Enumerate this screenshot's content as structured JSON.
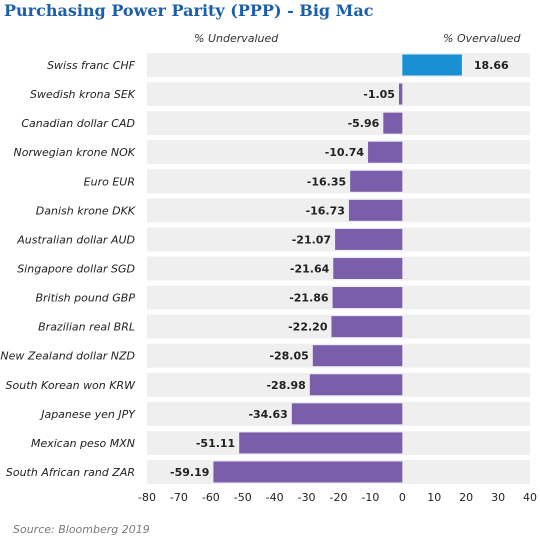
{
  "chart_data": {
    "type": "bar",
    "orientation": "horizontal",
    "title": "Purchasing Power Parity (PPP) - Big Mac",
    "left_header": "% Undervalued",
    "right_header": "% Overvalued",
    "categories": [
      "Swiss franc CHF",
      "Swedish krona SEK",
      "Canadian dollar CAD",
      "Norwegian krone NOK",
      "Euro EUR",
      "Danish krone DKK",
      "Australian dollar AUD",
      "Singapore dollar SGD",
      "British pound GBP",
      "Brazilian real BRL",
      "New Zealand dollar NZD",
      "South Korean won KRW",
      "Japanese yen JPY",
      "Mexican peso MXN",
      "South African rand ZAR"
    ],
    "values": [
      18.66,
      -1.05,
      -5.96,
      -10.74,
      -16.35,
      -16.73,
      -21.07,
      -21.64,
      -21.86,
      -22.2,
      -28.05,
      -28.98,
      -34.63,
      -51.11,
      -59.19
    ],
    "value_labels": [
      "18.66",
      "-1.05",
      "-5.96",
      "-10.74",
      "-16.35",
      "-16.73",
      "-21.07",
      "-21.64",
      "-21.86",
      "-22.20",
      "-28.05",
      "-28.98",
      "-34.63",
      "-51.11",
      "-59.19"
    ],
    "xlim": [
      -80,
      40
    ],
    "xticks": [
      -80,
      -70,
      -60,
      -50,
      -40,
      -30,
      -20,
      -10,
      0,
      10,
      20,
      30,
      40
    ],
    "colors": {
      "positive": "#1a90d4",
      "negative": "#7a5eab",
      "row_band": "#efefef"
    },
    "source": "Source: Bloomberg 2019"
  }
}
